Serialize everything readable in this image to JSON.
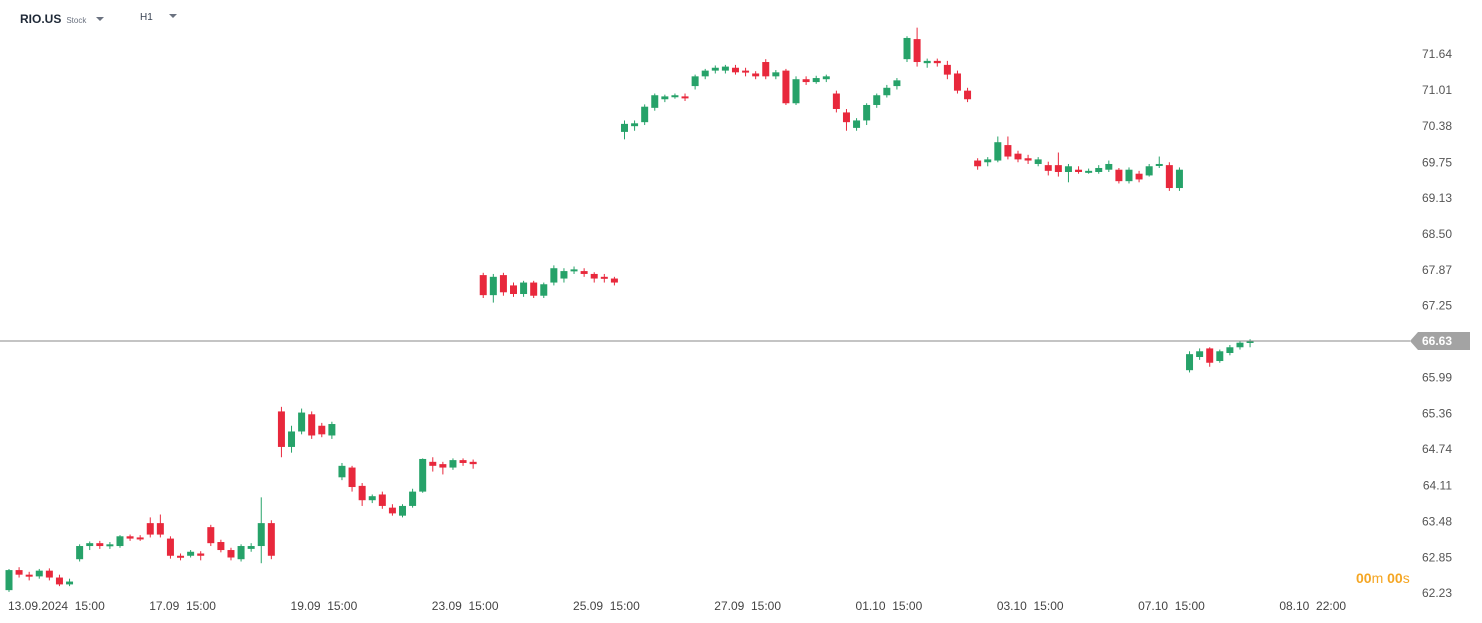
{
  "toolbar": {
    "symbol": "RIO.US",
    "instrument_type": "Stock",
    "timeframe": "H1"
  },
  "countdown": {
    "minutes": "00",
    "minutes_unit": "m",
    "seconds": "00",
    "seconds_unit": "s"
  },
  "colors": {
    "up": "#26a269",
    "down": "#e8283c",
    "price_line": "#888888",
    "price_tag": "#a3a3a3",
    "countdown": "#f5a623"
  },
  "chart_data": {
    "type": "candlestick",
    "symbol": "RIO.US",
    "timeframe": "H1",
    "current_price": "66.63",
    "y_range": [
      62.23,
      72.0
    ],
    "y_ticks": [
      "71.64",
      "71.01",
      "70.38",
      "69.75",
      "69.13",
      "68.50",
      "67.87",
      "67.25",
      "66.63",
      "65.99",
      "65.36",
      "64.74",
      "64.11",
      "63.48",
      "62.85",
      "62.23"
    ],
    "x_ticks": [
      {
        "index": 0,
        "label": "13.09.2024  15:00"
      },
      {
        "index": 14,
        "label": "17.09  15:00"
      },
      {
        "index": 28,
        "label": "19.09  15:00"
      },
      {
        "index": 42,
        "label": "23.09  15:00"
      },
      {
        "index": 56,
        "label": "25.09  15:00"
      },
      {
        "index": 70,
        "label": "27.09  15:00"
      },
      {
        "index": 84,
        "label": "01.10  15:00"
      },
      {
        "index": 98,
        "label": "03.10  15:00"
      },
      {
        "index": 112,
        "label": "07.10  15:00"
      },
      {
        "index": 126,
        "label": "08.10  22:00"
      }
    ],
    "candles": [
      [
        0,
        62.28,
        62.63,
        62.25,
        62.65
      ],
      [
        1,
        62.63,
        62.55,
        62.5,
        62.68
      ],
      [
        2,
        62.55,
        62.52,
        62.45,
        62.6
      ],
      [
        3,
        62.52,
        62.62,
        62.48,
        62.65
      ],
      [
        4,
        62.62,
        62.5,
        62.45,
        62.66
      ],
      [
        5,
        62.5,
        62.38,
        62.35,
        62.55
      ],
      [
        6,
        62.38,
        62.43,
        62.35,
        62.48
      ],
      [
        7,
        62.82,
        63.05,
        62.78,
        63.08
      ],
      [
        8,
        63.05,
        63.1,
        62.98,
        63.13
      ],
      [
        9,
        63.1,
        63.05,
        63.0,
        63.14
      ],
      [
        10,
        63.05,
        63.08,
        63.0,
        63.12
      ],
      [
        11,
        63.05,
        63.22,
        63.02,
        63.24
      ],
      [
        12,
        63.22,
        63.18,
        63.14,
        63.25
      ],
      [
        13,
        63.2,
        63.18,
        63.14,
        63.24
      ],
      [
        14,
        63.45,
        63.25,
        63.2,
        63.55
      ],
      [
        15,
        63.45,
        63.25,
        63.2,
        63.6
      ],
      [
        16,
        63.18,
        62.88,
        62.83,
        63.22
      ],
      [
        17,
        62.88,
        62.85,
        62.8,
        62.92
      ],
      [
        18,
        62.88,
        62.95,
        62.85,
        62.98
      ],
      [
        19,
        62.92,
        62.88,
        62.8,
        62.96
      ],
      [
        20,
        63.38,
        63.1,
        63.05,
        63.42
      ],
      [
        21,
        63.12,
        62.98,
        62.94,
        63.16
      ],
      [
        22,
        62.98,
        62.85,
        62.8,
        63.02
      ],
      [
        23,
        62.82,
        63.05,
        62.78,
        63.08
      ],
      [
        24,
        63.0,
        63.05,
        62.95,
        63.1
      ],
      [
        25,
        63.05,
        63.45,
        62.75,
        63.9
      ],
      [
        26,
        63.45,
        62.88,
        62.82,
        63.5
      ],
      [
        27,
        65.4,
        64.78,
        64.6,
        65.48
      ],
      [
        28,
        64.78,
        65.05,
        64.68,
        65.15
      ],
      [
        29,
        65.05,
        65.38,
        65.0,
        65.45
      ],
      [
        30,
        65.35,
        64.98,
        64.92,
        65.4
      ],
      [
        31,
        65.15,
        65.0,
        64.95,
        65.2
      ],
      [
        32,
        64.98,
        65.18,
        64.92,
        65.22
      ],
      [
        33,
        64.25,
        64.45,
        64.2,
        64.5
      ],
      [
        34,
        64.42,
        64.08,
        64.0,
        64.45
      ],
      [
        35,
        64.1,
        63.85,
        63.75,
        64.15
      ],
      [
        36,
        63.85,
        63.92,
        63.8,
        63.95
      ],
      [
        37,
        63.95,
        63.75,
        63.7,
        64.0
      ],
      [
        38,
        63.72,
        63.62,
        63.58,
        63.78
      ],
      [
        39,
        63.58,
        63.75,
        63.55,
        63.78
      ],
      [
        40,
        63.75,
        64.0,
        63.72,
        64.05
      ],
      [
        41,
        64.0,
        64.57,
        63.98,
        64.58
      ],
      [
        42,
        64.52,
        64.45,
        64.35,
        64.6
      ],
      [
        43,
        64.48,
        64.42,
        64.3,
        64.52
      ],
      [
        44,
        64.42,
        64.55,
        64.38,
        64.58
      ],
      [
        45,
        64.55,
        64.5,
        64.45,
        64.58
      ],
      [
        46,
        64.52,
        64.48,
        64.4,
        64.56
      ],
      [
        47,
        67.78,
        67.43,
        67.38,
        67.82
      ],
      [
        48,
        67.43,
        67.75,
        67.3,
        67.8
      ],
      [
        49,
        67.78,
        67.48,
        67.42,
        67.82
      ],
      [
        50,
        67.6,
        67.45,
        67.4,
        67.65
      ],
      [
        51,
        67.45,
        67.65,
        67.4,
        67.68
      ],
      [
        52,
        67.65,
        67.42,
        67.38,
        67.68
      ],
      [
        53,
        67.42,
        67.62,
        67.38,
        67.65
      ],
      [
        54,
        67.65,
        67.9,
        67.6,
        67.95
      ],
      [
        55,
        67.72,
        67.85,
        67.65,
        67.9
      ],
      [
        56,
        67.85,
        67.88,
        67.8,
        67.93
      ],
      [
        57,
        67.85,
        67.8,
        67.75,
        67.9
      ],
      [
        58,
        67.8,
        67.72,
        67.65,
        67.83
      ],
      [
        59,
        67.75,
        67.72,
        67.65,
        67.8
      ],
      [
        60,
        67.72,
        67.65,
        67.6,
        67.75
      ],
      [
        61,
        70.28,
        70.42,
        70.15,
        70.48
      ],
      [
        62,
        70.38,
        70.43,
        70.3,
        70.48
      ],
      [
        63,
        70.45,
        70.72,
        70.4,
        70.76
      ],
      [
        64,
        70.7,
        70.92,
        70.65,
        70.95
      ],
      [
        65,
        70.85,
        70.9,
        70.8,
        70.93
      ],
      [
        66,
        70.9,
        70.92,
        70.86,
        70.95
      ],
      [
        67,
        70.9,
        70.88,
        70.82,
        70.95
      ],
      [
        68,
        71.08,
        71.25,
        71.02,
        71.28
      ],
      [
        69,
        71.25,
        71.35,
        71.2,
        71.38
      ],
      [
        70,
        71.35,
        71.4,
        71.3,
        71.44
      ],
      [
        71,
        71.35,
        71.42,
        71.3,
        71.45
      ],
      [
        72,
        71.4,
        71.32,
        71.28,
        71.45
      ],
      [
        73,
        71.35,
        71.32,
        71.25,
        71.4
      ],
      [
        74,
        71.3,
        71.25,
        71.2,
        71.34
      ],
      [
        75,
        71.5,
        71.25,
        71.2,
        71.55
      ],
      [
        76,
        71.25,
        71.32,
        71.2,
        71.36
      ],
      [
        77,
        71.35,
        70.78,
        70.75,
        71.38
      ],
      [
        78,
        70.78,
        71.2,
        70.75,
        71.25
      ],
      [
        79,
        71.2,
        71.15,
        71.1,
        71.25
      ],
      [
        80,
        71.15,
        71.22,
        71.12,
        71.26
      ],
      [
        81,
        71.2,
        71.25,
        71.15,
        71.28
      ],
      [
        82,
        70.95,
        70.68,
        70.62,
        71.0
      ],
      [
        83,
        70.62,
        70.45,
        70.3,
        70.68
      ],
      [
        84,
        70.35,
        70.48,
        70.3,
        70.52
      ],
      [
        85,
        70.48,
        70.75,
        70.4,
        70.78
      ],
      [
        86,
        70.75,
        70.92,
        70.7,
        70.95
      ],
      [
        87,
        70.92,
        71.05,
        70.88,
        71.1
      ],
      [
        88,
        71.08,
        71.18,
        71.02,
        71.22
      ],
      [
        89,
        71.55,
        71.92,
        71.5,
        71.95
      ],
      [
        90,
        71.9,
        71.5,
        71.42,
        72.1
      ],
      [
        91,
        71.48,
        71.52,
        71.4,
        71.56
      ],
      [
        92,
        71.52,
        71.48,
        71.42,
        71.56
      ],
      [
        93,
        71.45,
        71.28,
        71.2,
        71.52
      ],
      [
        94,
        71.3,
        71.0,
        70.95,
        71.35
      ],
      [
        95,
        71.0,
        70.85,
        70.8,
        71.05
      ],
      [
        96,
        69.78,
        69.68,
        69.62,
        69.82
      ],
      [
        97,
        69.75,
        69.8,
        69.68,
        69.84
      ],
      [
        98,
        69.78,
        70.1,
        69.75,
        70.2
      ],
      [
        99,
        70.05,
        69.85,
        69.8,
        70.2
      ],
      [
        100,
        69.9,
        69.8,
        69.75,
        69.95
      ],
      [
        101,
        69.82,
        69.78,
        69.72,
        69.88
      ],
      [
        102,
        69.72,
        69.8,
        69.68,
        69.84
      ],
      [
        103,
        69.7,
        69.6,
        69.52,
        69.76
      ],
      [
        104,
        69.7,
        69.58,
        69.5,
        69.92
      ],
      [
        105,
        69.58,
        69.68,
        69.4,
        69.72
      ],
      [
        106,
        69.62,
        69.58,
        69.55,
        69.68
      ],
      [
        107,
        69.58,
        69.6,
        69.55,
        69.64
      ],
      [
        108,
        69.58,
        69.65,
        69.55,
        69.7
      ],
      [
        109,
        69.62,
        69.72,
        69.58,
        69.78
      ],
      [
        110,
        69.62,
        69.42,
        69.38,
        69.65
      ],
      [
        111,
        69.42,
        69.62,
        69.38,
        69.66
      ],
      [
        112,
        69.55,
        69.45,
        69.4,
        69.6
      ],
      [
        113,
        69.52,
        69.68,
        69.5,
        69.72
      ],
      [
        114,
        69.7,
        69.72,
        69.65,
        69.85
      ],
      [
        115,
        69.7,
        69.3,
        69.25,
        69.75
      ],
      [
        116,
        69.3,
        69.62,
        69.25,
        69.66
      ],
      [
        117,
        66.12,
        66.4,
        66.08,
        66.45
      ],
      [
        118,
        66.35,
        66.45,
        66.3,
        66.5
      ],
      [
        119,
        66.5,
        66.25,
        66.18,
        66.52
      ],
      [
        120,
        66.28,
        66.45,
        66.25,
        66.48
      ],
      [
        121,
        66.42,
        66.52,
        66.38,
        66.56
      ],
      [
        122,
        66.52,
        66.6,
        66.48,
        66.63
      ],
      [
        123,
        66.6,
        66.63,
        66.52,
        66.66
      ]
    ]
  }
}
